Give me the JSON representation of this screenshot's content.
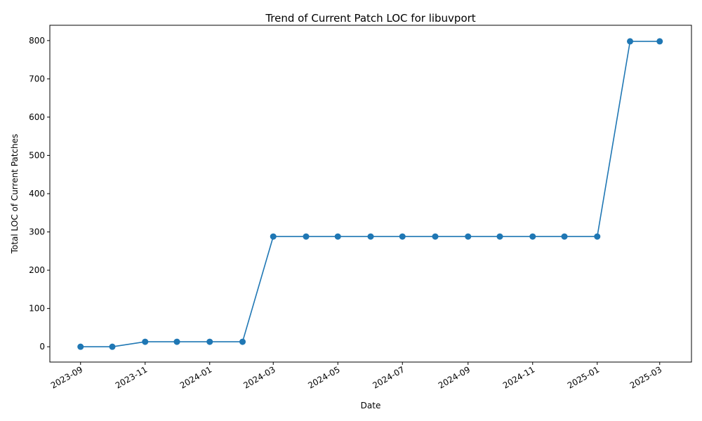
{
  "chart_data": {
    "type": "line",
    "title": "Trend of Current Patch LOC for libuvport",
    "xlabel": "Date",
    "ylabel": "Total LOC of Current Patches",
    "ylim": [
      -40,
      840
    ],
    "xlim": [
      "2023-08-03",
      "2025-03-31"
    ],
    "grid": false,
    "line_color": "#1f77b4",
    "marker": "circle",
    "x_ticks": [
      "2023-09",
      "2023-11",
      "2024-01",
      "2024-03",
      "2024-05",
      "2024-07",
      "2024-09",
      "2024-11",
      "2025-01",
      "2025-03"
    ],
    "y_ticks": [
      0,
      100,
      200,
      300,
      400,
      500,
      600,
      700,
      800
    ],
    "series": [
      {
        "x": [
          "2023-09-01",
          "2023-10-01",
          "2023-11-01",
          "2023-12-01",
          "2024-01-01",
          "2024-02-01",
          "2024-03-01",
          "2024-04-01",
          "2024-05-01",
          "2024-06-01",
          "2024-07-01",
          "2024-08-01",
          "2024-09-01",
          "2024-10-01",
          "2024-11-01",
          "2024-12-01",
          "2025-01-01",
          "2025-02-01",
          "2025-03-01"
        ],
        "values": [
          0,
          0,
          13,
          13,
          13,
          13,
          288,
          288,
          288,
          288,
          288,
          288,
          288,
          288,
          288,
          288,
          288,
          798,
          798
        ]
      }
    ]
  }
}
